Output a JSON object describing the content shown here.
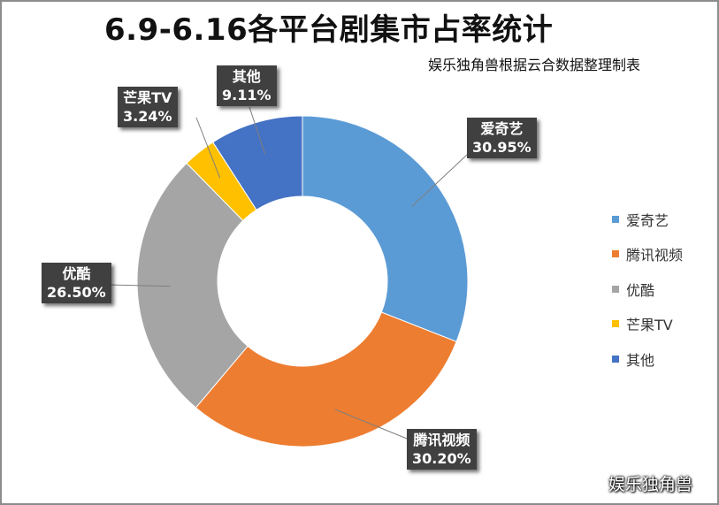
{
  "chart_data": {
    "type": "donut",
    "title": "6.9-6.16各平台剧集市占率统计",
    "subtitle": "娱乐独角兽根据云合数据整理制表",
    "legend_position": "right",
    "series": [
      {
        "name": "爱奇艺",
        "value": 30.95,
        "label": "30.95%",
        "color": "#5B9BD5"
      },
      {
        "name": "腾讯视频",
        "value": 30.2,
        "label": "30.20%",
        "color": "#ED7D31"
      },
      {
        "name": "优酷",
        "value": 26.5,
        "label": "26.50%",
        "color": "#A5A5A5"
      },
      {
        "name": "芒果TV",
        "value": 3.24,
        "label": "3.24%",
        "color": "#FFC000"
      },
      {
        "name": "其他",
        "value": 9.11,
        "label": "9.11%",
        "color": "#4472C4"
      }
    ]
  },
  "watermark": "娱乐独角兽"
}
